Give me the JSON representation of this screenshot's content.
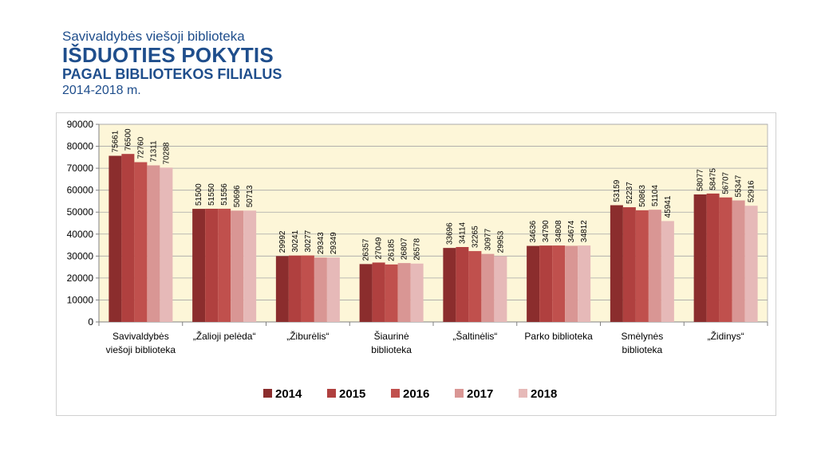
{
  "header": {
    "org": "Savivaldybės viešoji biblioteka",
    "title": "IŠDUOTIES POKYTIS",
    "subtitle": "PAGAL BIBLIOTEKOS FILIALUS",
    "years": "2014-2018 m."
  },
  "chart_data": {
    "type": "bar",
    "categories": [
      [
        "Savivaldybės",
        "viešoji biblioteka"
      ],
      [
        "„Žalioji pelėda“"
      ],
      [
        "„Žiburėlis“"
      ],
      [
        "Šiaurinė",
        "biblioteka"
      ],
      [
        "„Šaltinėlis“"
      ],
      [
        "Parko biblioteka"
      ],
      [
        "Smėlynės",
        "biblioteka"
      ],
      [
        "„Židinys“"
      ]
    ],
    "series": [
      {
        "name": "2014",
        "color": "#8b2d2d",
        "values": [
          75661,
          51500,
          29992,
          26357,
          33696,
          34636,
          53159,
          58077
        ]
      },
      {
        "name": "2015",
        "color": "#b0403f",
        "values": [
          76500,
          51550,
          30241,
          27049,
          34114,
          34790,
          52237,
          58475
        ]
      },
      {
        "name": "2016",
        "color": "#c0504d",
        "values": [
          72760,
          51556,
          30277,
          26185,
          32265,
          34808,
          50863,
          56707
        ]
      },
      {
        "name": "2017",
        "color": "#d99694",
        "values": [
          71311,
          50696,
          29343,
          26807,
          30977,
          34674,
          51104,
          55347
        ]
      },
      {
        "name": "2018",
        "color": "#e6b9b8",
        "values": [
          70288,
          50713,
          29349,
          26578,
          29953,
          34812,
          45941,
          52916
        ]
      }
    ],
    "yticks": [
      "0",
      "10000",
      "20000",
      "30000",
      "40000",
      "50000",
      "60000",
      "70000",
      "80000",
      "90000"
    ],
    "ylim": [
      0,
      90000
    ],
    "plot_background": "#fdf6d8",
    "grid": true,
    "legend_position": "bottom"
  }
}
